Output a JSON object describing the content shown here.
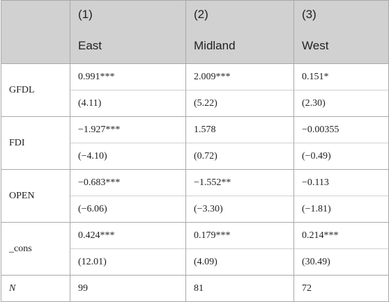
{
  "header": {
    "numbers": [
      "(1)",
      "(2)",
      "(3)"
    ],
    "regions": [
      "East",
      "Midland",
      "West"
    ]
  },
  "rows": [
    {
      "label": "GFDL",
      "coef": [
        "0.991***",
        "2.009***",
        "0.151*"
      ],
      "se": [
        "(4.11)",
        "(5.22)",
        "(2.30)"
      ]
    },
    {
      "label": "FDI",
      "coef": [
        "−1.927***",
        "1.578",
        "−0.00355"
      ],
      "se": [
        "(−4.10)",
        "(0.72)",
        "(−0.49)"
      ]
    },
    {
      "label": "OPEN",
      "coef": [
        "−0.683***",
        "−1.552**",
        "−0.113"
      ],
      "se": [
        "(−6.06)",
        "(−3.30)",
        "(−1.81)"
      ]
    },
    {
      "label": "_cons",
      "coef": [
        "0.424***",
        "0.179***",
        "0.214***"
      ],
      "se": [
        "(12.01)",
        "(4.09)",
        "(30.49)"
      ]
    }
  ],
  "n_row": {
    "label": "N",
    "values": [
      "99",
      "81",
      "72"
    ]
  }
}
